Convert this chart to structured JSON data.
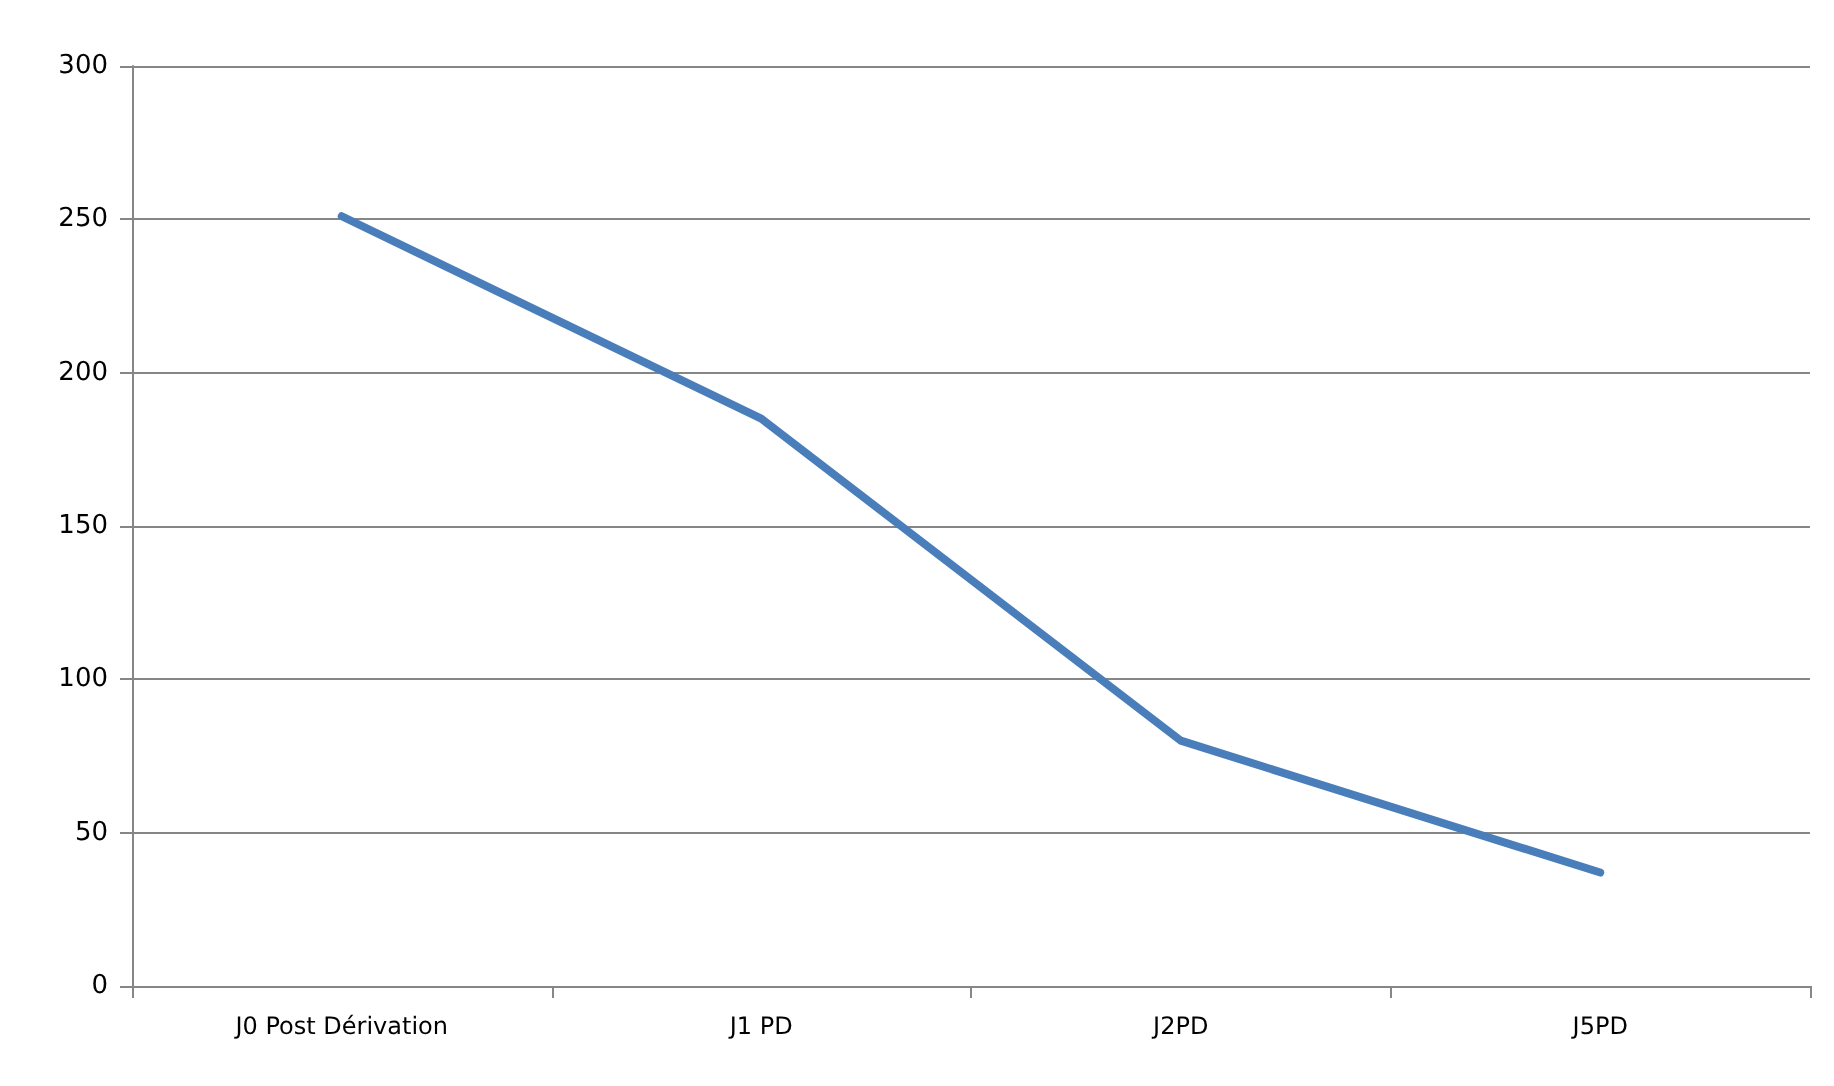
{
  "chart_data": {
    "type": "line",
    "categories": [
      "J0 Post Dérivation",
      "J1 PD",
      "J2PD",
      "J5PD"
    ],
    "series": [
      {
        "color": "#4a7ebb",
        "values": [
          251,
          185,
          80,
          37
        ]
      }
    ],
    "ylim": [
      0,
      300
    ],
    "yticks": [
      0,
      50,
      100,
      150,
      200,
      250,
      300
    ],
    "grid": "y",
    "marker": "none",
    "line_style": "solid"
  }
}
